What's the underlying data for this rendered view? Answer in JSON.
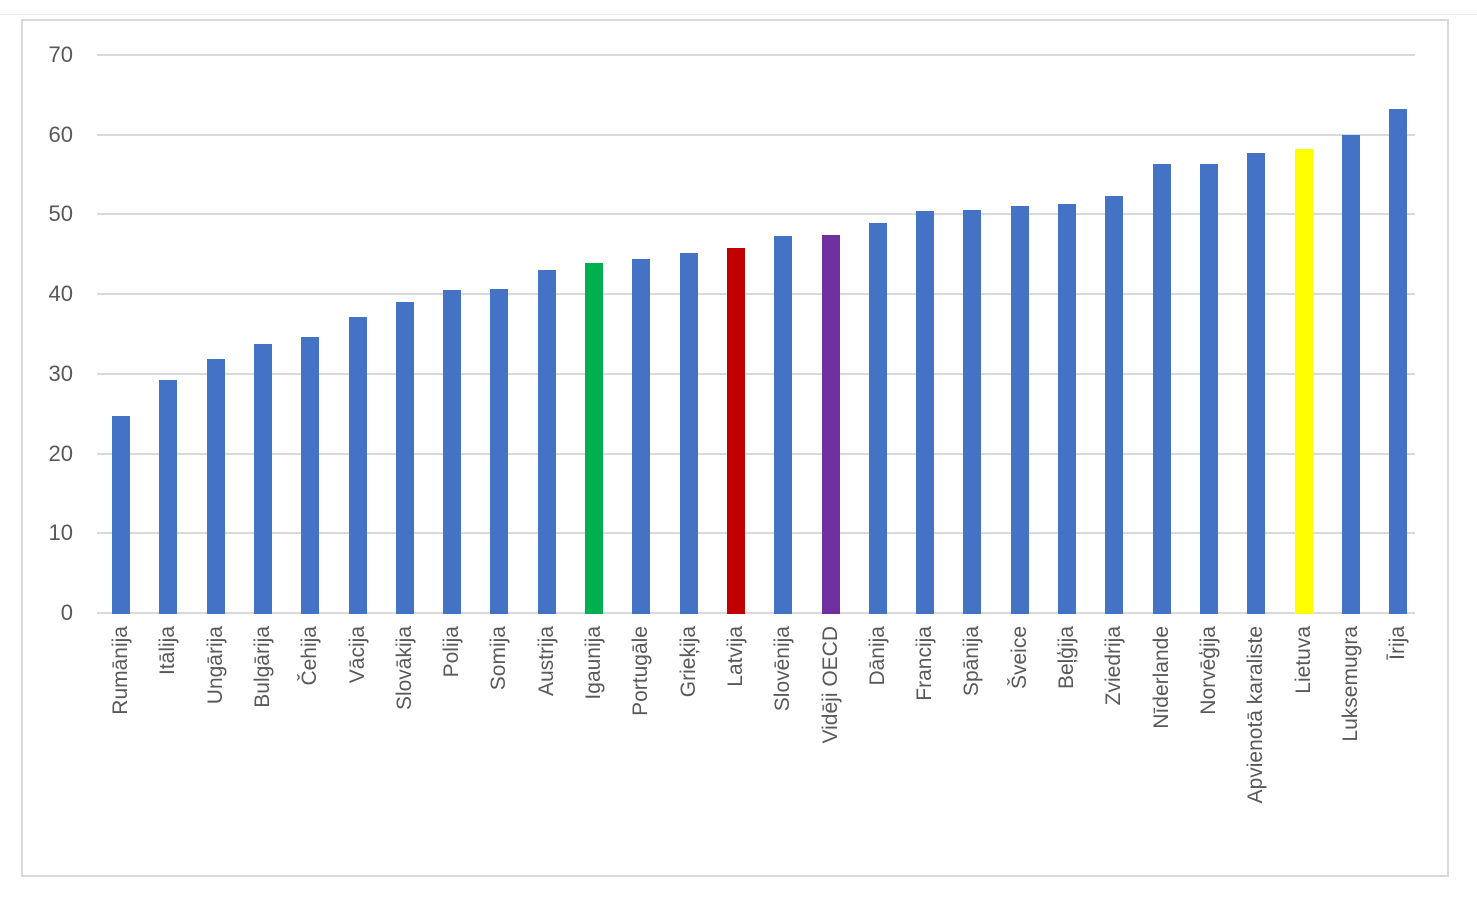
{
  "chart_data": {
    "type": "bar",
    "title": "",
    "xlabel": "",
    "ylabel": "",
    "categories": [
      "Rumānija",
      "Itālija",
      "Ungārija",
      "Bulgārija",
      "Čehija",
      "Vācija",
      "Slovākija",
      "Polija",
      "Somija",
      "Austrija",
      "Igaunija",
      "Portugāle",
      "Grieķija",
      "Latvija",
      "Slovēnija",
      "Vidēji OECD",
      "Dānija",
      "Francija",
      "Spānija",
      "Šveice",
      "Beļģija",
      "Zviedrija",
      "Nīderlande",
      "Norvēģija",
      "Apvienotā karaliste",
      "Lietuva",
      "Luksemugra",
      "Īrija"
    ],
    "values": [
      24.8,
      29.3,
      32.0,
      33.9,
      34.7,
      37.3,
      39.2,
      40.6,
      40.8,
      43.2,
      44.0,
      44.5,
      45.3,
      45.9,
      47.4,
      47.6,
      49.1,
      50.6,
      50.7,
      51.2,
      51.4,
      52.4,
      56.5,
      56.4,
      57.8,
      58.3,
      60.1,
      63.4
    ],
    "bar_colors": [
      "#4472C4",
      "#4472C4",
      "#4472C4",
      "#4472C4",
      "#4472C4",
      "#4472C4",
      "#4472C4",
      "#4472C4",
      "#4472C4",
      "#4472C4",
      "#00B050",
      "#4472C4",
      "#4472C4",
      "#C00000",
      "#4472C4",
      "#7030A0",
      "#4472C4",
      "#4472C4",
      "#4472C4",
      "#4472C4",
      "#4472C4",
      "#4472C4",
      "#4472C4",
      "#4472C4",
      "#4472C4",
      "#FFFF00",
      "#4472C4",
      "#4472C4"
    ],
    "highlight_colors": {
      "Igaunija": "#00B050",
      "Latvija": "#C00000",
      "Vidēji OECD": "#7030A0",
      "Lietuva": "#FFFF00",
      "default": "#4472C4"
    },
    "yticks": [
      "0",
      "10",
      "20",
      "30",
      "40",
      "50",
      "60",
      "70"
    ],
    "ylim": [
      0,
      70
    ],
    "grid": true,
    "legend": false,
    "gridline_color": "#D9D9D9",
    "axis_text_color": "#595959",
    "frame_border_color": "#D9D9D9",
    "x_labels_rotated_degrees": 90
  }
}
